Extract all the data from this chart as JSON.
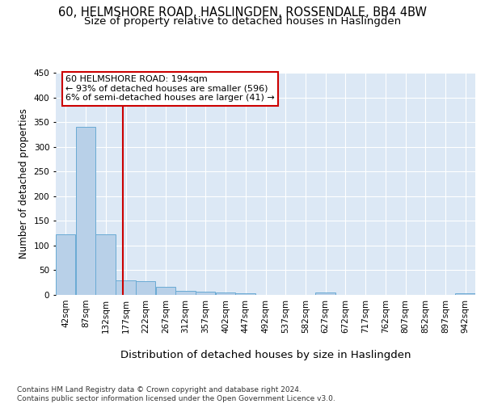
{
  "title_line1": "60, HELMSHORE ROAD, HASLINGDEN, ROSSENDALE, BB4 4BW",
  "title_line2": "Size of property relative to detached houses in Haslingden",
  "xlabel": "Distribution of detached houses by size in Haslingden",
  "ylabel": "Number of detached properties",
  "footer": "Contains HM Land Registry data © Crown copyright and database right 2024.\nContains public sector information licensed under the Open Government Licence v3.0.",
  "bin_labels": [
    "42sqm",
    "87sqm",
    "132sqm",
    "177sqm",
    "222sqm",
    "267sqm",
    "312sqm",
    "357sqm",
    "402sqm",
    "447sqm",
    "492sqm",
    "537sqm",
    "582sqm",
    "627sqm",
    "672sqm",
    "717sqm",
    "762sqm",
    "807sqm",
    "852sqm",
    "897sqm",
    "942sqm"
  ],
  "bar_values": [
    123,
    340,
    122,
    30,
    28,
    17,
    9,
    6,
    5,
    3,
    0,
    0,
    0,
    5,
    0,
    0,
    0,
    0,
    0,
    0,
    4
  ],
  "bin_edges": [
    42,
    87,
    132,
    177,
    222,
    267,
    312,
    357,
    402,
    447,
    492,
    537,
    582,
    627,
    672,
    717,
    762,
    807,
    852,
    897,
    942,
    987
  ],
  "bar_color": "#b8d0e8",
  "bar_edge_color": "#6aaad4",
  "vline_x": 194,
  "vline_color": "#cc0000",
  "annotation_text": "60 HELMSHORE ROAD: 194sqm\n← 93% of detached houses are smaller (596)\n6% of semi-detached houses are larger (41) →",
  "annotation_box_color": "#ffffff",
  "annotation_box_edge": "#cc0000",
  "ylim": [
    0,
    450
  ],
  "yticks": [
    0,
    50,
    100,
    150,
    200,
    250,
    300,
    350,
    400,
    450
  ],
  "bg_color": "#dce8f5",
  "grid_color": "#ffffff",
  "title1_fontsize": 10.5,
  "title2_fontsize": 9.5,
  "ylabel_fontsize": 8.5,
  "xlabel_fontsize": 9.5,
  "tick_fontsize": 7.5,
  "annot_fontsize": 8,
  "footer_fontsize": 6.5
}
